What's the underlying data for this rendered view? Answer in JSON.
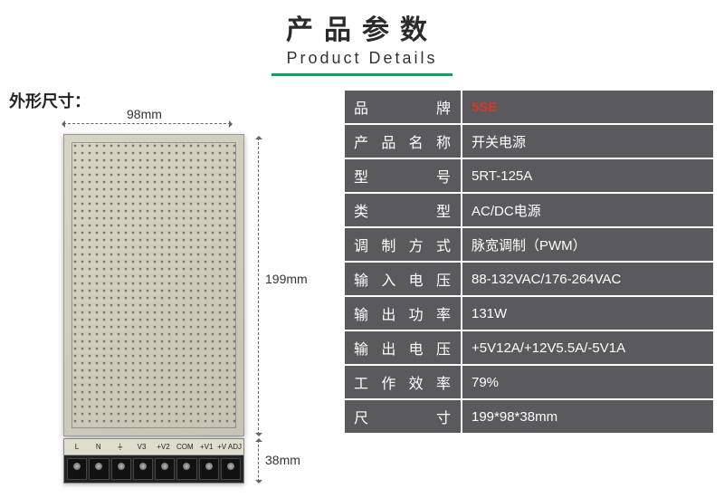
{
  "header": {
    "title_cn": "产品参数",
    "title_en": "Product Details",
    "underline_color": "#00a84f"
  },
  "dimensions": {
    "label": "外形尺寸：",
    "width": "98mm",
    "height": "199mm",
    "depth": "38mm"
  },
  "terminal_labels": [
    "L",
    "N",
    "⏚",
    "V3",
    "+V2",
    "COM",
    "+V1",
    "+V ADJ"
  ],
  "specs": {
    "rows": [
      {
        "key": "品牌",
        "value": "5SE",
        "value_class": "brand-val"
      },
      {
        "key": "产品名称",
        "value": "开关电源"
      },
      {
        "key": "型号",
        "value": "5RT-125A"
      },
      {
        "key": "类型",
        "value": "AC/DC电源"
      },
      {
        "key": "调制方式",
        "value": "脉宽调制（PWM）"
      },
      {
        "key": "输入电压",
        "value": "88-132VAC/176-264VAC"
      },
      {
        "key": "输出功率",
        "value": "131W"
      },
      {
        "key": "输出电压",
        "value": "+5V12A/+12V5.5A/-5V1A"
      },
      {
        "key": "工作效率",
        "value": "79%"
      },
      {
        "key": "尺寸",
        "value": "199*98*38mm"
      }
    ],
    "table_bg": "#5a595e",
    "table_border": "#ffffff",
    "text_color": "#ffffff",
    "brand_color": "#d43a2a"
  }
}
